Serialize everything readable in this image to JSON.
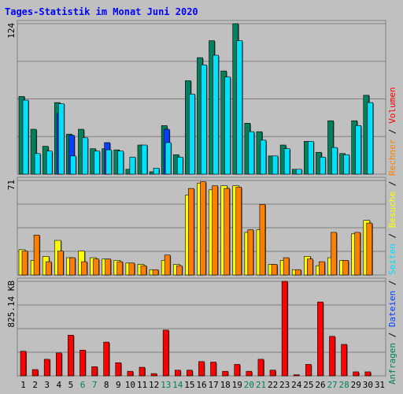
{
  "title": "Tages-Statistik im Monat Juni 2020",
  "colors": {
    "background": "#c0c0c0",
    "title": "#0000ff",
    "grid": "#808080",
    "hits": "#00805c",
    "files": "#0040ff",
    "pages": "#00e0ff",
    "visits": "#ffff00",
    "sites": "#ff8000",
    "kbytes": "#ff0000",
    "weekend": "#00805c",
    "weekday": "#000000"
  },
  "legend_right": [
    {
      "text": "Anfragen",
      "color": "#00805c"
    },
    {
      "text": " / ",
      "color": "#000000"
    },
    {
      "text": "Dateien",
      "color": "#0040ff"
    },
    {
      "text": " / ",
      "color": "#000000"
    },
    {
      "text": "Seiten",
      "color": "#00e0ff"
    },
    {
      "text": " / ",
      "color": "#000000"
    },
    {
      "text": "Besuche",
      "color": "#ffff00"
    },
    {
      "text": " / ",
      "color": "#000000"
    },
    {
      "text": "Rechner",
      "color": "#ff8000"
    },
    {
      "text": " / ",
      "color": "#000000"
    },
    {
      "text": "Volumen",
      "color": "#ff0000"
    }
  ],
  "chart_data": [
    {
      "type": "bar",
      "panel": "hits",
      "x": [
        1,
        2,
        3,
        4,
        5,
        6,
        7,
        8,
        9,
        10,
        11,
        12,
        13,
        14,
        15,
        16,
        17,
        18,
        19,
        20,
        21,
        22,
        23,
        24,
        25,
        26,
        27,
        28,
        29,
        30,
        31
      ],
      "weekend_days": [
        6,
        7,
        13,
        14,
        20,
        21,
        27,
        28
      ],
      "ymax": 124,
      "ymax_label": "124",
      "series": [
        {
          "name": "Anfragen",
          "values": [
            64,
            37,
            23,
            59,
            33,
            37,
            21,
            21,
            20,
            4,
            24,
            2,
            40,
            16,
            77,
            96,
            110,
            85,
            124,
            42,
            35,
            15,
            24,
            4,
            27,
            18,
            44,
            17,
            44,
            65,
            0
          ]
        },
        {
          "name": "Dateien",
          "values": [
            0,
            0,
            0,
            50,
            32,
            0,
            0,
            26,
            0,
            0,
            0,
            0,
            37,
            0,
            0,
            0,
            0,
            0,
            0,
            0,
            0,
            0,
            0,
            0,
            0,
            0,
            0,
            0,
            0,
            0,
            0
          ]
        },
        {
          "name": "Seiten",
          "values": [
            61,
            17,
            19,
            58,
            15,
            30,
            19,
            20,
            19,
            14,
            24,
            5,
            26,
            14,
            66,
            90,
            98,
            80,
            110,
            35,
            28,
            15,
            21,
            4,
            27,
            14,
            22,
            16,
            40,
            59,
            0
          ]
        }
      ]
    },
    {
      "type": "bar",
      "panel": "visits",
      "x": [
        1,
        2,
        3,
        4,
        5,
        6,
        7,
        8,
        9,
        10,
        11,
        12,
        13,
        14,
        15,
        16,
        17,
        18,
        19,
        20,
        21,
        22,
        23,
        24,
        25,
        26,
        27,
        28,
        29,
        30,
        31
      ],
      "ymax": 71,
      "ymax_label": "71",
      "series": [
        {
          "name": "Besuche",
          "values": [
            19,
            11,
            14,
            26,
            13,
            18,
            13,
            12,
            11,
            9,
            8,
            4,
            11,
            8,
            60,
            69,
            64,
            67,
            67,
            32,
            34,
            8,
            11,
            4,
            14,
            7,
            13,
            11,
            31,
            41,
            0
          ]
        },
        {
          "name": "Rechner",
          "values": [
            18,
            30,
            10,
            18,
            13,
            10,
            12,
            12,
            10,
            9,
            7,
            4,
            15,
            7,
            65,
            70,
            67,
            65,
            66,
            34,
            53,
            8,
            13,
            4,
            12,
            10,
            32,
            11,
            32,
            39,
            0
          ]
        }
      ]
    },
    {
      "type": "bar",
      "panel": "kbytes",
      "x": [
        1,
        2,
        3,
        4,
        5,
        6,
        7,
        8,
        9,
        10,
        11,
        12,
        13,
        14,
        15,
        16,
        17,
        18,
        19,
        20,
        21,
        22,
        23,
        24,
        25,
        26,
        27,
        28,
        29,
        30,
        31
      ],
      "ymax": 825.14,
      "ymax_label": "825.14 KB",
      "series": [
        {
          "name": "Volumen",
          "values": [
            215,
            55,
            145,
            200,
            355,
            225,
            80,
            295,
            115,
            40,
            75,
            20,
            400,
            50,
            50,
            125,
            120,
            40,
            100,
            40,
            145,
            50,
            825,
            10,
            100,
            645,
            345,
            275,
            35,
            35,
            0
          ]
        }
      ]
    }
  ]
}
